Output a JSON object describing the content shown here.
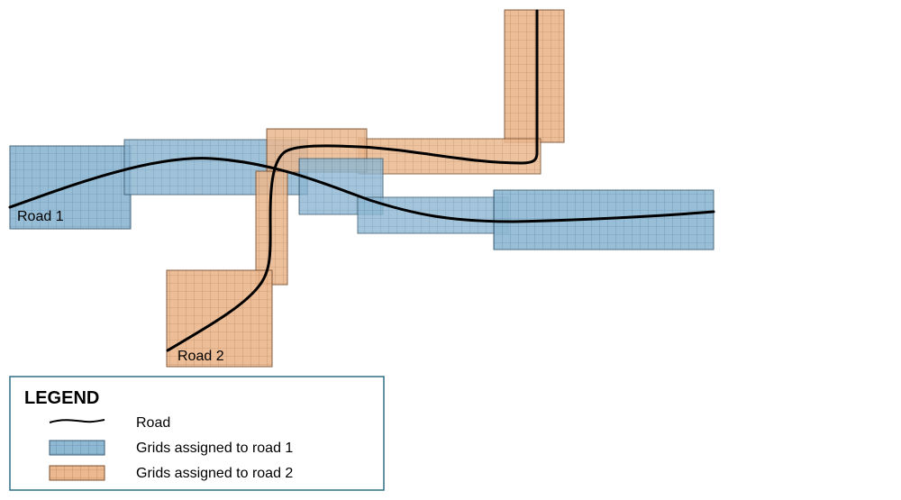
{
  "colors": {
    "road1_fill": "#8fb8d3",
    "road2_fill": "#ebb88f",
    "road1_grid": "#4c7f9f",
    "road2_grid": "#b07a4c",
    "road_line": "#000000",
    "legend_border": "#2e6f86"
  },
  "labels": {
    "road1": "Road 1",
    "road2": "Road 2"
  },
  "legend": {
    "title": "LEGEND",
    "road": "Road",
    "grid1": "Grids assigned to road 1",
    "grid2": "Grids assigned to road 2"
  }
}
